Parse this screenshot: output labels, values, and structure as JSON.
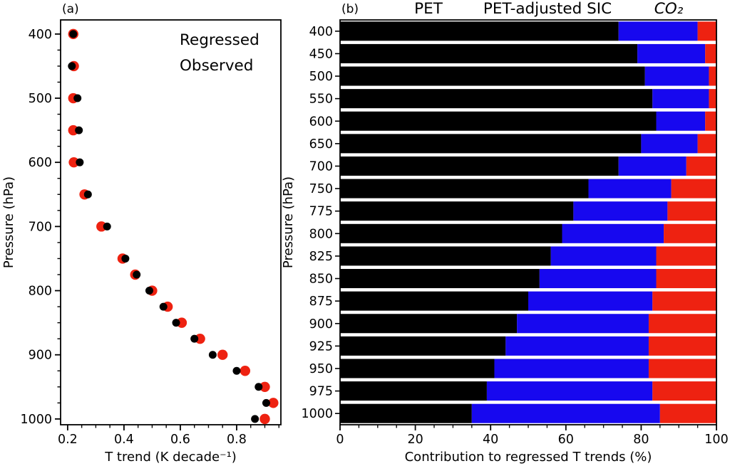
{
  "colors": {
    "red": "#ee2211",
    "blue": "#1708ef",
    "black": "#000000",
    "background": "#ffffff"
  },
  "panel_a": {
    "tag": "(a)",
    "xlabel": "T trend (K decade⁻¹)",
    "ylabel": "Pressure (hPa)",
    "x_tick_labels": [
      "0.2",
      "0.4",
      "0.6",
      "0.8"
    ],
    "y_tick_labels": [
      "400",
      "500",
      "600",
      "700",
      "800",
      "900",
      "1000"
    ],
    "legend": [
      {
        "label": "Regressed",
        "color_key": "red"
      },
      {
        "label": "Observed",
        "color_key": "black"
      }
    ]
  },
  "panel_b": {
    "tag": "(b)",
    "xlabel": "Contribution to regressed T trends (%)",
    "ylabel": "Pressure (hPa)",
    "x_tick_labels": [
      "0",
      "20",
      "40",
      "60",
      "80",
      "100"
    ],
    "y_tick_labels": [
      "400",
      "450",
      "500",
      "550",
      "600",
      "650",
      "700",
      "750",
      "775",
      "800",
      "825",
      "850",
      "875",
      "900",
      "925",
      "950",
      "975",
      "1000"
    ],
    "legend": [
      {
        "label": "PET",
        "color_key": "black",
        "italic": false
      },
      {
        "label": "PET-adjusted SIC",
        "color_key": "blue",
        "italic": false
      },
      {
        "label": "CO₂",
        "color_key": "red",
        "italic": true
      }
    ]
  },
  "chart_data": [
    {
      "type": "scatter",
      "panel": "a",
      "title": "(a)",
      "xlabel": "T trend (K decade⁻¹)",
      "ylabel": "Pressure (hPa)",
      "xlim": [
        0.175,
        0.957
      ],
      "ylim": [
        1009,
        378
      ],
      "x_ticks": [
        0.2,
        0.4,
        0.6,
        0.8
      ],
      "x_minor_tick_step": 0.05,
      "y_ticks": [
        400,
        500,
        600,
        700,
        800,
        900,
        1000
      ],
      "y_minor_tick_step": 25,
      "grid": false,
      "legend_position": "upper right",
      "pressure_levels": [
        400,
        450,
        500,
        550,
        600,
        650,
        700,
        750,
        775,
        800,
        825,
        850,
        875,
        900,
        925,
        950,
        975,
        1000
      ],
      "series": [
        {
          "name": "Regressed",
          "color_key": "red",
          "values": [
            0.22,
            0.222,
            0.22,
            0.22,
            0.222,
            0.26,
            0.32,
            0.395,
            0.44,
            0.5,
            0.555,
            0.605,
            0.67,
            0.75,
            0.83,
            0.9,
            0.93,
            0.9
          ]
        },
        {
          "name": "Observed",
          "color_key": "black",
          "values": [
            0.22,
            0.215,
            0.235,
            0.24,
            0.243,
            0.272,
            0.34,
            0.405,
            0.445,
            0.49,
            0.54,
            0.585,
            0.65,
            0.715,
            0.8,
            0.878,
            0.905,
            0.865
          ]
        }
      ]
    },
    {
      "type": "bar",
      "panel": "b",
      "title": "(b)",
      "orientation": "horizontal",
      "stacked": true,
      "xlabel": "Contribution to regressed T trends (%)",
      "ylabel": "Pressure (hPa)",
      "xlim": [
        0,
        100
      ],
      "x_ticks": [
        0,
        20,
        40,
        60,
        80,
        100
      ],
      "x_minor_tick_step": 5,
      "grid": false,
      "legend_position": "top",
      "categories": [
        400,
        450,
        500,
        550,
        600,
        650,
        700,
        750,
        775,
        800,
        825,
        850,
        875,
        900,
        925,
        950,
        975,
        1000
      ],
      "series": [
        {
          "name": "PET",
          "color_key": "black",
          "values": [
            74,
            79,
            81,
            83,
            84,
            80,
            74,
            66,
            62,
            59,
            56,
            53,
            50,
            47,
            44,
            41,
            39,
            35
          ]
        },
        {
          "name": "PET-adjusted SIC",
          "color_key": "blue",
          "values": [
            21,
            18,
            17,
            15,
            13,
            15,
            18,
            22,
            25,
            27,
            28,
            31,
            33,
            35,
            38,
            41,
            44,
            50
          ]
        },
        {
          "name": "CO₂",
          "color_key": "red",
          "values": [
            5,
            3,
            2,
            2,
            3,
            5,
            8,
            12,
            13,
            14,
            16,
            16,
            17,
            18,
            18,
            18,
            17,
            15
          ]
        }
      ]
    }
  ]
}
